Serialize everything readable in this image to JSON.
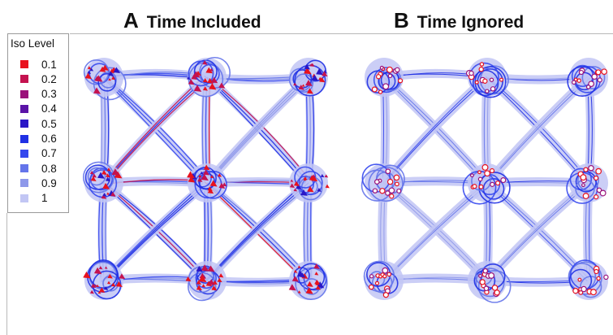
{
  "panels": [
    {
      "letter": "A",
      "title": "Time Included"
    },
    {
      "letter": "B",
      "title": "Time Ignored"
    }
  ],
  "legend": {
    "title": "Iso Level",
    "items": [
      {
        "label": "0.1",
        "color": "#e8121e"
      },
      {
        "label": "0.2",
        "color": "#c4124f"
      },
      {
        "label": "0.3",
        "color": "#9a127a"
      },
      {
        "label": "0.4",
        "color": "#5a13a6"
      },
      {
        "label": "0.5",
        "color": "#2a17c6"
      },
      {
        "label": "0.6",
        "color": "#1f30e4"
      },
      {
        "label": "0.7",
        "color": "#3548ee"
      },
      {
        "label": "0.8",
        "color": "#6474ea"
      },
      {
        "label": "0.9",
        "color": "#8e98ea"
      },
      {
        "label": "1",
        "color": "#c2c6f4"
      }
    ]
  }
}
